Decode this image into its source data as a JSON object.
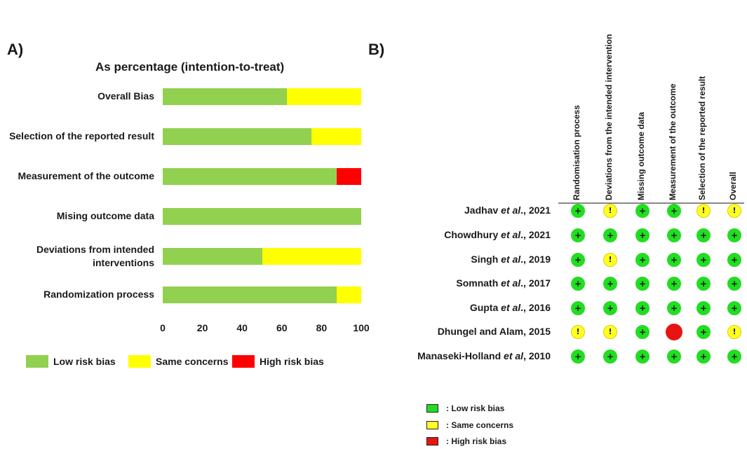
{
  "panel_a_label": "A)",
  "panel_b_label": "B)",
  "chart_data": [
    {
      "type": "bar",
      "orientation": "horizontal",
      "stacked": true,
      "title": "As percentage (intention-to-treat)",
      "categories": [
        "Overall Bias",
        "Selection of the reported result",
        "Measurement of the outcome",
        "Mising outcome data",
        "Deviations from intended interventions",
        "Randomization process"
      ],
      "series": [
        {
          "name": "Low risk bias",
          "color": "#92d050",
          "values": [
            62.5,
            75,
            87.5,
            100,
            50,
            87.5
          ]
        },
        {
          "name": "Same concerns",
          "color": "#ffff00",
          "values": [
            37.5,
            25,
            0,
            0,
            50,
            12.5
          ]
        },
        {
          "name": "High risk bias",
          "color": "#ff0000",
          "values": [
            0,
            0,
            12.5,
            0,
            0,
            0
          ]
        }
      ],
      "xlim": [
        0,
        100
      ],
      "xticks": [
        "0",
        "20",
        "40",
        "60",
        "80",
        "100"
      ],
      "legend_position": "bottom"
    },
    {
      "type": "table",
      "columns": [
        "Randomisation process",
        "Deviations from the intended intervention",
        "Missing outcome data",
        "Measurement of the outcome",
        "Selection of the reported result",
        "Overall"
      ],
      "rows": [
        {
          "prefix": "Jadhav ",
          "italic": "et al",
          "suffix": "., 2021",
          "cells": [
            "low",
            "some",
            "low",
            "low",
            "some",
            "some"
          ]
        },
        {
          "prefix": "Chowdhury ",
          "italic": "et al",
          "suffix": "., 2021",
          "cells": [
            "low",
            "low",
            "low",
            "low",
            "low",
            "low"
          ]
        },
        {
          "prefix": "Singh ",
          "italic": "et al",
          "suffix": "., 2019",
          "cells": [
            "low",
            "some",
            "low",
            "low",
            "low",
            "low"
          ]
        },
        {
          "prefix": "Somnath ",
          "italic": "et al",
          "suffix": "., 2017",
          "cells": [
            "low",
            "low",
            "low",
            "low",
            "low",
            "low"
          ]
        },
        {
          "prefix": "Gupta ",
          "italic": "et al",
          "suffix": "., 2016",
          "cells": [
            "low",
            "low",
            "low",
            "low",
            "low",
            "low"
          ]
        },
        {
          "prefix": "Dhungel and Alam, 2015",
          "italic": "",
          "suffix": "",
          "cells": [
            "some",
            "some",
            "low",
            "high",
            "low",
            "some"
          ]
        },
        {
          "prefix": "Manaseki-Holland ",
          "italic": "et al",
          "suffix": ", 2010",
          "cells": [
            "low",
            "low",
            "low",
            "low",
            "low",
            "low"
          ]
        }
      ],
      "judgements": {
        "low": {
          "symbol": "+",
          "color": "#22dd22",
          "label": ": Low risk bias"
        },
        "some": {
          "symbol": "!",
          "color": "#ffff22",
          "label": ": Same concerns"
        },
        "high": {
          "symbol": "",
          "color": "#e81414",
          "label": ": High risk bias"
        }
      }
    }
  ]
}
